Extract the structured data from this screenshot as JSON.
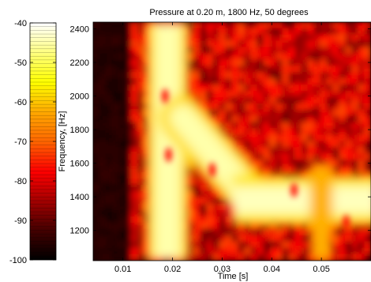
{
  "chart_data": {
    "type": "heatmap",
    "title": "Pressure at 0.20 m, 1800 Hz, 50 degrees",
    "xlabel": "Time [s]",
    "ylabel": "Frequency, [Hz]",
    "xlim": [
      0.004,
      0.06
    ],
    "ylim": [
      1020,
      2440
    ],
    "xticks": [
      0.01,
      0.02,
      0.03,
      0.04,
      0.05
    ],
    "yticks": [
      1200,
      1400,
      1600,
      1800,
      2000,
      2200,
      2400
    ],
    "colorbar": {
      "range": [
        -100,
        -40
      ],
      "ticks": [
        -40,
        -50,
        -60,
        -70,
        -80,
        -90,
        -100
      ],
      "colormap": "hot"
    },
    "features": [
      {
        "name": "vertical-band",
        "x": 0.019,
        "y_from": 1020,
        "y_to": 2440,
        "level": -45
      },
      {
        "name": "diagonal-band",
        "from": [
          0.022,
          1870
        ],
        "to": [
          0.034,
          1460
        ],
        "level": -45
      },
      {
        "name": "horizontal-band",
        "y": 1380,
        "x_from": 0.032,
        "x_to": 0.06,
        "level": -44
      },
      {
        "name": "late-vertical-band",
        "x": 0.05,
        "y_from": 1020,
        "y_to": 1600,
        "level": -62
      }
    ]
  }
}
